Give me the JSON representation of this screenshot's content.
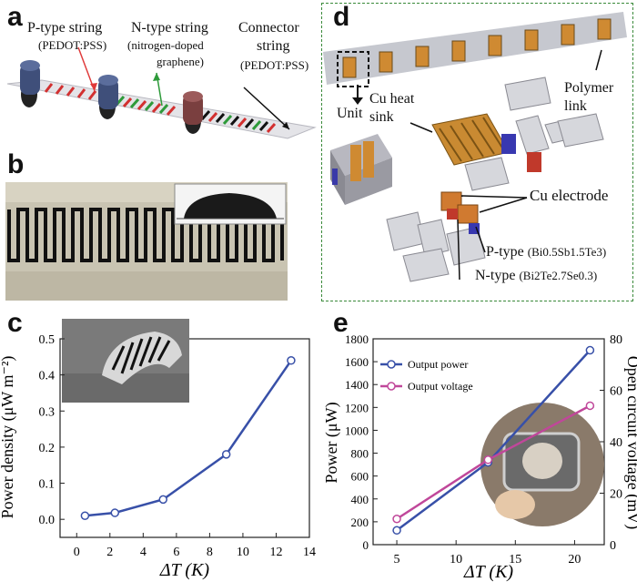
{
  "panels": {
    "a": "a",
    "b": "b",
    "c": "c",
    "d": "d",
    "e": "e"
  },
  "panel_a": {
    "p_string": "P-type string",
    "p_material": "(PEDOT:PSS)",
    "n_string": "N-type string",
    "n_material": "(nitrogen-doped",
    "n_material2": "graphene)",
    "connector": "Connector",
    "connector2": "string",
    "connector_material": "(PEDOT:PSS)"
  },
  "panel_d": {
    "unit": "Unit",
    "cu_heat": "Cu heat",
    "sink": "sink",
    "polymer": "Polymer",
    "link": "link",
    "cu_electrode": "Cu electrode",
    "p_type": "P-type",
    "p_formula": "(Bi0.5Sb1.5Te3)",
    "n_type": "N-type",
    "n_formula": "(Bi2Te2.7Se0.3)"
  },
  "chart_data": [
    {
      "panel": "c",
      "type": "line",
      "xlabel": "ΔT (K)",
      "ylabel": "Power density (μW m⁻²)",
      "xlim": [
        -1,
        14
      ],
      "ylim": [
        -0.05,
        0.5
      ],
      "xticks": [
        "0",
        "2",
        "4",
        "6",
        "8",
        "10",
        "12",
        "14"
      ],
      "yticks": [
        "0.0",
        "0.1",
        "0.2",
        "0.3",
        "0.4",
        "0.5"
      ],
      "series": [
        {
          "name": "Power density",
          "color": "#3850a8",
          "x": [
            0.5,
            2.3,
            5.2,
            9.0,
            12.9
          ],
          "y": [
            0.01,
            0.018,
            0.055,
            0.18,
            0.44
          ]
        }
      ]
    },
    {
      "panel": "e",
      "type": "line",
      "xlabel": "ΔT (K)",
      "ylabel": "Power (μW)",
      "ylabel_right": "Open circuit voltage (mV)",
      "xlim": [
        3,
        22.5
      ],
      "ylim": [
        0,
        1800
      ],
      "ylim_right": [
        0,
        80
      ],
      "xticks": [
        "5",
        "10",
        "15",
        "20"
      ],
      "yticks": [
        "0",
        "200",
        "400",
        "600",
        "800",
        "1000",
        "1200",
        "1400",
        "1600",
        "1800"
      ],
      "yticks_right": [
        "0",
        "20",
        "40",
        "60",
        "80"
      ],
      "series": [
        {
          "name": "Output power",
          "axis": "left",
          "color": "#3850a8",
          "x": [
            5,
            12.7,
            21.3
          ],
          "y": [
            125,
            720,
            1700
          ]
        },
        {
          "name": "Output voltage",
          "axis": "right",
          "color": "#c0479a",
          "x": [
            5,
            12.7,
            21.3
          ],
          "y": [
            10,
            33,
            54
          ]
        }
      ]
    }
  ]
}
